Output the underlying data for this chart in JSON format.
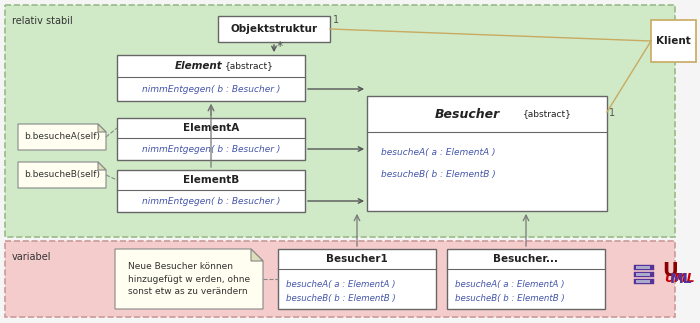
{
  "bg_green": "#d0eac8",
  "bg_pink": "#f5cccc",
  "border_green": "#99bb88",
  "border_pink": "#cc9999",
  "border_dark": "#666666",
  "border_tan": "#c8aa60",
  "text_dark": "#222222",
  "text_italic": "#4455aa",
  "fig_bg": "#f5f5f5",
  "relativ_stabil_label": "relativ stabil",
  "variabel_label": "variabel",
  "objektstruktur_label": "Objektstruktur",
  "element_label": "Element",
  "element_abstract": "{abstract}",
  "element_method": "nimmEntgegen( b : Besucher )",
  "elementA_label": "ElementA",
  "elementA_method": "nimmEntgegen( b : Besucher )",
  "elementB_label": "ElementB",
  "elementB_method": "nimmEntgegen( b : Besucher )",
  "besucher_label": "Besucher",
  "besucher_abstract": "{abstract}",
  "besucher_method1": "besucheA( a : ElementA )",
  "besucher_method2": "besucheB( b : ElementB )",
  "klient_label": "Klient",
  "note_A_text": "b.besucheA(self)",
  "note_B_text": "b.besucheB(self)",
  "note_neue_text": "Neue Besucher können\nhinzugefügt w erden, ohne\nsonst etw as zu verändern",
  "besucher1_label": "Besucher1",
  "besucher1_method1": "besucheA( a : ElementA )",
  "besucher1_method2": "besucheB( b : ElementB )",
  "besucher_dots_label": "Besucher...",
  "besucher_dots_method1": "besucheA( a : ElementA )",
  "besucher_dots_method2": "besucheB( b : ElementB )"
}
